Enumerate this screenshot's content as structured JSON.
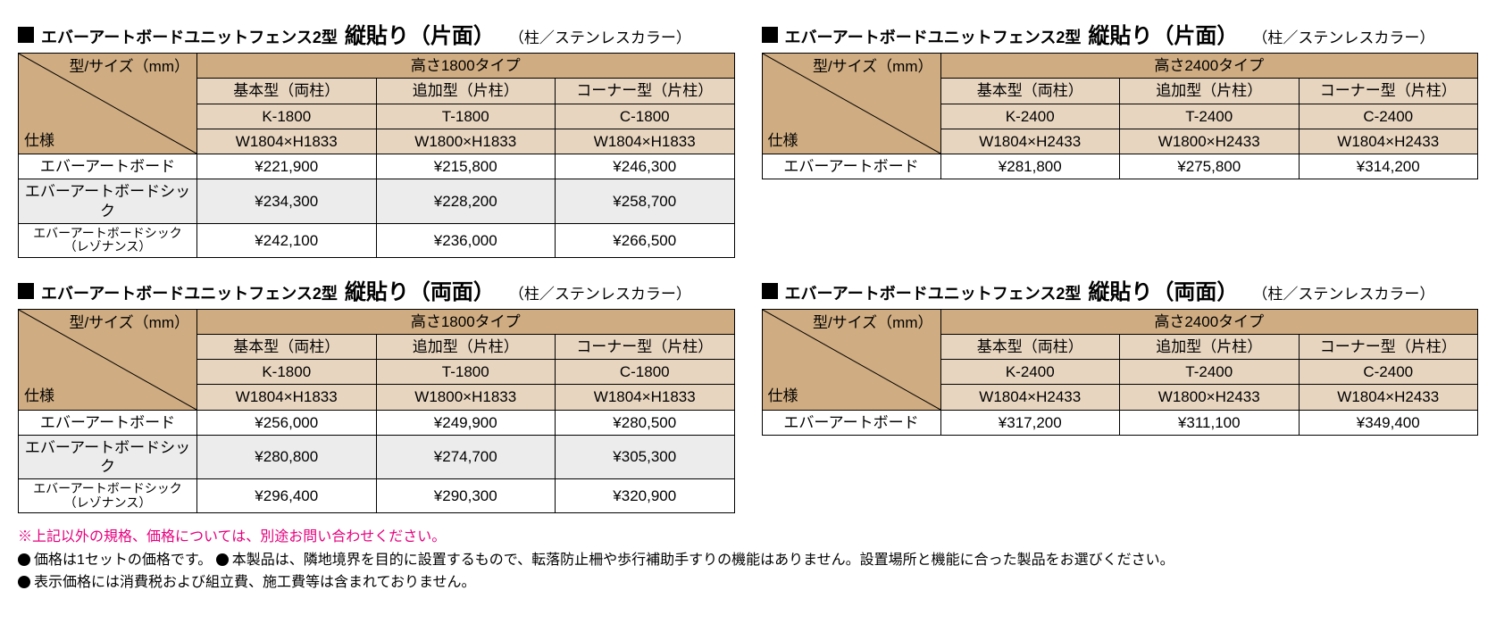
{
  "colors": {
    "header_bg_dark": "#cfac81",
    "header_bg_light": "#e7d5bf",
    "row_grey": "#ececec",
    "note_red": "#e6007e",
    "border": "#000000",
    "background": "#ffffff"
  },
  "typography": {
    "base_font": "Hiragino Kaku Gothic ProN",
    "heading_main_size": 18,
    "heading_big_size": 24,
    "cell_size": 17,
    "price_size": 20
  },
  "common": {
    "diag_top": "型/サイズ（mm）",
    "diag_bottom": "仕様",
    "col_labels": [
      "基本型（両柱）",
      "追加型（片柱）",
      "コーナー型（片柱）"
    ]
  },
  "tables": [
    {
      "title_main": "エバーアートボードユニットフェンス2型",
      "title_big": "縦貼り（片面）",
      "title_sub": "（柱／ステンレスカラー）",
      "height_label": "高さ1800タイプ",
      "codes": [
        "K-1800",
        "T-1800",
        "C-1800"
      ],
      "dims": [
        "W1804×H1833",
        "W1800×H1833",
        "W1804×H1833"
      ],
      "rows": [
        {
          "label": "エバーアートボード",
          "small": false,
          "grey": false,
          "prices": [
            "¥221,900",
            "¥215,800",
            "¥246,300"
          ]
        },
        {
          "label": "エバーアートボードシック",
          "small": false,
          "grey": true,
          "prices": [
            "¥234,300",
            "¥228,200",
            "¥258,700"
          ]
        },
        {
          "label": "エバーアートボードシック<br>（レゾナンス）",
          "small": true,
          "grey": false,
          "prices": [
            "¥242,100",
            "¥236,000",
            "¥266,500"
          ]
        }
      ]
    },
    {
      "title_main": "エバーアートボードユニットフェンス2型",
      "title_big": "縦貼り（片面）",
      "title_sub": "（柱／ステンレスカラー）",
      "height_label": "高さ2400タイプ",
      "codes": [
        "K-2400",
        "T-2400",
        "C-2400"
      ],
      "dims": [
        "W1804×H2433",
        "W1800×H2433",
        "W1804×H2433"
      ],
      "rows": [
        {
          "label": "エバーアートボード",
          "small": false,
          "grey": false,
          "prices": [
            "¥281,800",
            "¥275,800",
            "¥314,200"
          ]
        }
      ]
    },
    {
      "title_main": "エバーアートボードユニットフェンス2型",
      "title_big": "縦貼り（両面）",
      "title_sub": "（柱／ステンレスカラー）",
      "height_label": "高さ1800タイプ",
      "codes": [
        "K-1800",
        "T-1800",
        "C-1800"
      ],
      "dims": [
        "W1804×H1833",
        "W1800×H1833",
        "W1804×H1833"
      ],
      "rows": [
        {
          "label": "エバーアートボード",
          "small": false,
          "grey": false,
          "prices": [
            "¥256,000",
            "¥249,900",
            "¥280,500"
          ]
        },
        {
          "label": "エバーアートボードシック",
          "small": false,
          "grey": true,
          "prices": [
            "¥280,800",
            "¥274,700",
            "¥305,300"
          ]
        },
        {
          "label": "エバーアートボードシック<br>（レゾナンス）",
          "small": true,
          "grey": false,
          "prices": [
            "¥296,400",
            "¥290,300",
            "¥320,900"
          ]
        }
      ]
    },
    {
      "title_main": "エバーアートボードユニットフェンス2型",
      "title_big": "縦貼り（両面）",
      "title_sub": "（柱／ステンレスカラー）",
      "height_label": "高さ2400タイプ",
      "codes": [
        "K-2400",
        "T-2400",
        "C-2400"
      ],
      "dims": [
        "W1804×H2433",
        "W1800×H2433",
        "W1804×H2433"
      ],
      "rows": [
        {
          "label": "エバーアートボード",
          "small": false,
          "grey": false,
          "prices": [
            "¥317,200",
            "¥311,100",
            "¥349,400"
          ]
        }
      ]
    }
  ],
  "notes": {
    "red": "※上記以外の規格、価格については、別途お問い合わせください。",
    "line1a": "価格は1セットの価格です。",
    "line1b": "本製品は、隣地境界を目的に設置するもので、転落防止柵や歩行補助手すりの機能はありません。設置場所と機能に合った製品をお選びください。",
    "line2": "表示価格には消費税および組立費、施工費等は含まれておりません。"
  }
}
